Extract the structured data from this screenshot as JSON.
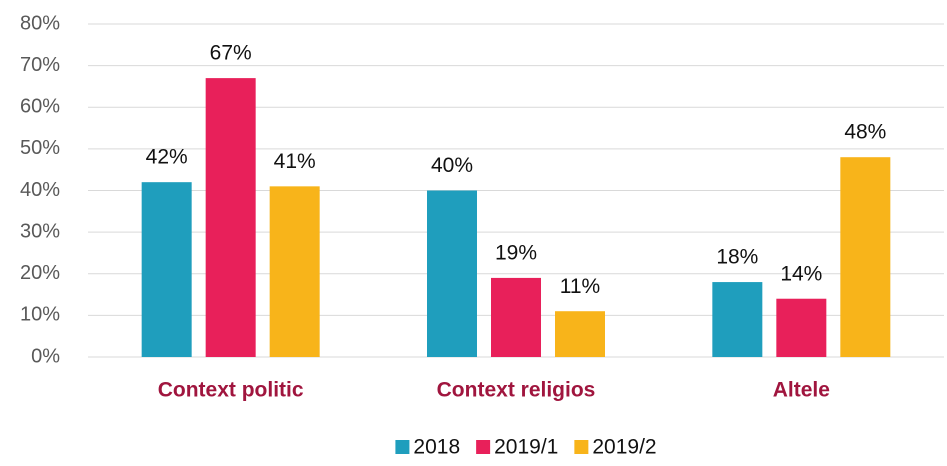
{
  "chart_data": {
    "type": "bar",
    "categories": [
      "Context politic",
      "Context religios",
      "Altele"
    ],
    "series": [
      {
        "name": "2018",
        "color": "#1f9ebd",
        "values": [
          42,
          40,
          18
        ],
        "value_labels": [
          "42%",
          "40%",
          "18%"
        ]
      },
      {
        "name": "2019/1",
        "color": "#e8205a",
        "values": [
          67,
          19,
          14
        ],
        "value_labels": [
          "67%",
          "19%",
          "14%"
        ]
      },
      {
        "name": "2019/2",
        "color": "#f8b41a",
        "values": [
          41,
          11,
          48
        ],
        "value_labels": [
          "41%",
          "11%",
          "48%"
        ]
      }
    ],
    "ylim": [
      0,
      80
    ],
    "yticks": [
      {
        "value": 0,
        "label": "0%"
      },
      {
        "value": 10,
        "label": "10%"
      },
      {
        "value": 20,
        "label": "20%"
      },
      {
        "value": 30,
        "label": "30%"
      },
      {
        "value": 40,
        "label": "40%"
      },
      {
        "value": 50,
        "label": "50%"
      },
      {
        "value": 60,
        "label": "60%"
      },
      {
        "value": 70,
        "label": "70%"
      },
      {
        "value": 80,
        "label": "80%"
      }
    ],
    "grid": true,
    "legend": "bottom"
  }
}
